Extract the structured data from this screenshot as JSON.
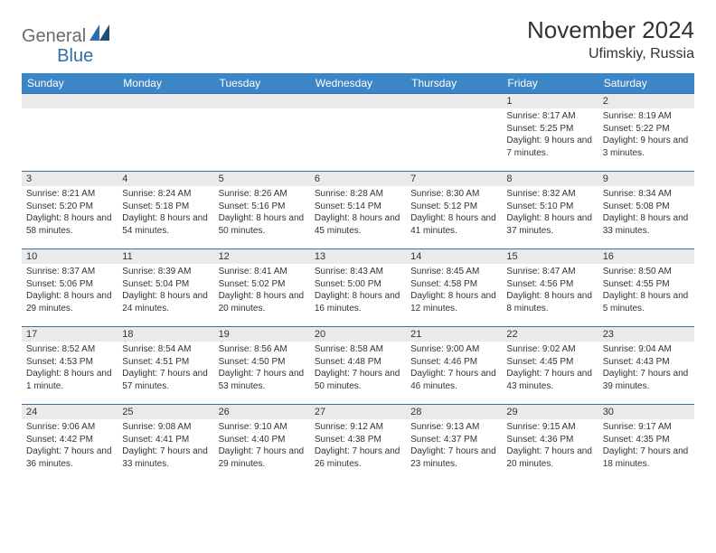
{
  "logo": {
    "general": "General",
    "blue": "Blue"
  },
  "title": "November 2024",
  "location": "Ufimskiy, Russia",
  "headers": [
    "Sunday",
    "Monday",
    "Tuesday",
    "Wednesday",
    "Thursday",
    "Friday",
    "Saturday"
  ],
  "header_bg": "#3b86c6",
  "header_fg": "#ffffff",
  "row_border": "#3b6f9e",
  "daynum_bg": "#e9eaec",
  "weeks": [
    [
      {
        "day": "",
        "sunrise": "",
        "sunset": "",
        "daylight": ""
      },
      {
        "day": "",
        "sunrise": "",
        "sunset": "",
        "daylight": ""
      },
      {
        "day": "",
        "sunrise": "",
        "sunset": "",
        "daylight": ""
      },
      {
        "day": "",
        "sunrise": "",
        "sunset": "",
        "daylight": ""
      },
      {
        "day": "",
        "sunrise": "",
        "sunset": "",
        "daylight": ""
      },
      {
        "day": "1",
        "sunrise": "Sunrise: 8:17 AM",
        "sunset": "Sunset: 5:25 PM",
        "daylight": "Daylight: 9 hours and 7 minutes."
      },
      {
        "day": "2",
        "sunrise": "Sunrise: 8:19 AM",
        "sunset": "Sunset: 5:22 PM",
        "daylight": "Daylight: 9 hours and 3 minutes."
      }
    ],
    [
      {
        "day": "3",
        "sunrise": "Sunrise: 8:21 AM",
        "sunset": "Sunset: 5:20 PM",
        "daylight": "Daylight: 8 hours and 58 minutes."
      },
      {
        "day": "4",
        "sunrise": "Sunrise: 8:24 AM",
        "sunset": "Sunset: 5:18 PM",
        "daylight": "Daylight: 8 hours and 54 minutes."
      },
      {
        "day": "5",
        "sunrise": "Sunrise: 8:26 AM",
        "sunset": "Sunset: 5:16 PM",
        "daylight": "Daylight: 8 hours and 50 minutes."
      },
      {
        "day": "6",
        "sunrise": "Sunrise: 8:28 AM",
        "sunset": "Sunset: 5:14 PM",
        "daylight": "Daylight: 8 hours and 45 minutes."
      },
      {
        "day": "7",
        "sunrise": "Sunrise: 8:30 AM",
        "sunset": "Sunset: 5:12 PM",
        "daylight": "Daylight: 8 hours and 41 minutes."
      },
      {
        "day": "8",
        "sunrise": "Sunrise: 8:32 AM",
        "sunset": "Sunset: 5:10 PM",
        "daylight": "Daylight: 8 hours and 37 minutes."
      },
      {
        "day": "9",
        "sunrise": "Sunrise: 8:34 AM",
        "sunset": "Sunset: 5:08 PM",
        "daylight": "Daylight: 8 hours and 33 minutes."
      }
    ],
    [
      {
        "day": "10",
        "sunrise": "Sunrise: 8:37 AM",
        "sunset": "Sunset: 5:06 PM",
        "daylight": "Daylight: 8 hours and 29 minutes."
      },
      {
        "day": "11",
        "sunrise": "Sunrise: 8:39 AM",
        "sunset": "Sunset: 5:04 PM",
        "daylight": "Daylight: 8 hours and 24 minutes."
      },
      {
        "day": "12",
        "sunrise": "Sunrise: 8:41 AM",
        "sunset": "Sunset: 5:02 PM",
        "daylight": "Daylight: 8 hours and 20 minutes."
      },
      {
        "day": "13",
        "sunrise": "Sunrise: 8:43 AM",
        "sunset": "Sunset: 5:00 PM",
        "daylight": "Daylight: 8 hours and 16 minutes."
      },
      {
        "day": "14",
        "sunrise": "Sunrise: 8:45 AM",
        "sunset": "Sunset: 4:58 PM",
        "daylight": "Daylight: 8 hours and 12 minutes."
      },
      {
        "day": "15",
        "sunrise": "Sunrise: 8:47 AM",
        "sunset": "Sunset: 4:56 PM",
        "daylight": "Daylight: 8 hours and 8 minutes."
      },
      {
        "day": "16",
        "sunrise": "Sunrise: 8:50 AM",
        "sunset": "Sunset: 4:55 PM",
        "daylight": "Daylight: 8 hours and 5 minutes."
      }
    ],
    [
      {
        "day": "17",
        "sunrise": "Sunrise: 8:52 AM",
        "sunset": "Sunset: 4:53 PM",
        "daylight": "Daylight: 8 hours and 1 minute."
      },
      {
        "day": "18",
        "sunrise": "Sunrise: 8:54 AM",
        "sunset": "Sunset: 4:51 PM",
        "daylight": "Daylight: 7 hours and 57 minutes."
      },
      {
        "day": "19",
        "sunrise": "Sunrise: 8:56 AM",
        "sunset": "Sunset: 4:50 PM",
        "daylight": "Daylight: 7 hours and 53 minutes."
      },
      {
        "day": "20",
        "sunrise": "Sunrise: 8:58 AM",
        "sunset": "Sunset: 4:48 PM",
        "daylight": "Daylight: 7 hours and 50 minutes."
      },
      {
        "day": "21",
        "sunrise": "Sunrise: 9:00 AM",
        "sunset": "Sunset: 4:46 PM",
        "daylight": "Daylight: 7 hours and 46 minutes."
      },
      {
        "day": "22",
        "sunrise": "Sunrise: 9:02 AM",
        "sunset": "Sunset: 4:45 PM",
        "daylight": "Daylight: 7 hours and 43 minutes."
      },
      {
        "day": "23",
        "sunrise": "Sunrise: 9:04 AM",
        "sunset": "Sunset: 4:43 PM",
        "daylight": "Daylight: 7 hours and 39 minutes."
      }
    ],
    [
      {
        "day": "24",
        "sunrise": "Sunrise: 9:06 AM",
        "sunset": "Sunset: 4:42 PM",
        "daylight": "Daylight: 7 hours and 36 minutes."
      },
      {
        "day": "25",
        "sunrise": "Sunrise: 9:08 AM",
        "sunset": "Sunset: 4:41 PM",
        "daylight": "Daylight: 7 hours and 33 minutes."
      },
      {
        "day": "26",
        "sunrise": "Sunrise: 9:10 AM",
        "sunset": "Sunset: 4:40 PM",
        "daylight": "Daylight: 7 hours and 29 minutes."
      },
      {
        "day": "27",
        "sunrise": "Sunrise: 9:12 AM",
        "sunset": "Sunset: 4:38 PM",
        "daylight": "Daylight: 7 hours and 26 minutes."
      },
      {
        "day": "28",
        "sunrise": "Sunrise: 9:13 AM",
        "sunset": "Sunset: 4:37 PM",
        "daylight": "Daylight: 7 hours and 23 minutes."
      },
      {
        "day": "29",
        "sunrise": "Sunrise: 9:15 AM",
        "sunset": "Sunset: 4:36 PM",
        "daylight": "Daylight: 7 hours and 20 minutes."
      },
      {
        "day": "30",
        "sunrise": "Sunrise: 9:17 AM",
        "sunset": "Sunset: 4:35 PM",
        "daylight": "Daylight: 7 hours and 18 minutes."
      }
    ]
  ]
}
